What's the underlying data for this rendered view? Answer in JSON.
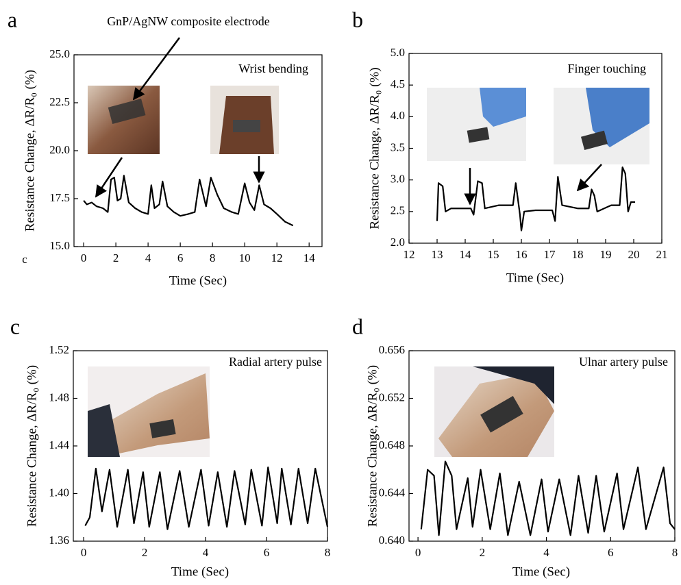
{
  "chart_data": [
    {
      "type": "line",
      "panel_label": "a",
      "annotations": [
        "Wrist bending",
        "GnP/AgNW composite electrode",
        "c"
      ],
      "xlabel": "Time (Sec)",
      "ylabel": "Resistance Change, ΔR/R₀ (%)",
      "color": "#000000",
      "x": [
        0.0,
        0.2,
        0.5,
        0.8,
        1.2,
        1.5,
        1.7,
        1.9,
        2.1,
        2.3,
        2.5,
        2.8,
        3.2,
        3.6,
        4.0,
        4.2,
        4.4,
        4.7,
        4.9,
        5.2,
        5.6,
        6.0,
        6.5,
        6.9,
        7.2,
        7.6,
        7.9,
        8.3,
        8.7,
        9.2,
        9.6,
        10.0,
        10.3,
        10.6,
        10.9,
        11.2,
        11.6,
        12.0,
        12.5,
        13.0
      ],
      "values": [
        17.4,
        17.2,
        17.3,
        17.1,
        17.0,
        16.8,
        18.5,
        18.6,
        17.4,
        17.5,
        18.7,
        17.3,
        17.0,
        16.8,
        16.7,
        18.2,
        17.0,
        17.2,
        18.4,
        17.1,
        16.8,
        16.6,
        16.7,
        16.8,
        18.5,
        17.1,
        18.6,
        17.7,
        17.0,
        16.8,
        16.7,
        18.3,
        17.3,
        16.9,
        18.2,
        17.2,
        17.0,
        16.7,
        16.3,
        16.1
      ],
      "xlim": [
        -0.6,
        14.8
      ],
      "ylim": [
        15,
        25
      ],
      "xticks": [
        0,
        2,
        4,
        6,
        8,
        10,
        12,
        14
      ],
      "yticks": [
        {
          "value": 15,
          "label": "15.0"
        },
        {
          "value": 17.5,
          "label": "17.5"
        },
        {
          "value": 20,
          "label": "20.0"
        },
        {
          "value": 22.5,
          "label": "22.5"
        },
        {
          "value": 25,
          "label": "25.0"
        }
      ]
    },
    {
      "type": "line",
      "panel_label": "b",
      "annotations": [
        "Finger touching"
      ],
      "xlabel": "Time (Sec)",
      "ylabel": "Resistance Change, ΔR/R₀ (%)",
      "color": "#000000",
      "x": [
        13.0,
        13.05,
        13.2,
        13.3,
        13.5,
        14.2,
        14.3,
        14.45,
        14.6,
        14.7,
        15.2,
        15.7,
        15.8,
        15.95,
        16.0,
        16.1,
        16.5,
        17.1,
        17.2,
        17.3,
        17.45,
        18.0,
        18.4,
        18.5,
        18.6,
        18.7,
        19.2,
        19.5,
        19.6,
        19.7,
        19.8,
        19.9,
        20.05
      ],
      "values": [
        2.35,
        2.95,
        2.9,
        2.5,
        2.55,
        2.55,
        2.45,
        2.98,
        2.95,
        2.55,
        2.6,
        2.6,
        2.95,
        2.45,
        2.2,
        2.5,
        2.52,
        2.52,
        2.35,
        3.05,
        2.6,
        2.55,
        2.55,
        2.85,
        2.75,
        2.5,
        2.6,
        2.6,
        3.2,
        3.1,
        2.5,
        2.65,
        2.65
      ],
      "xlim": [
        12,
        21
      ],
      "ylim": [
        2,
        5
      ],
      "xticks": [
        12,
        13,
        14,
        15,
        16,
        17,
        18,
        19,
        20,
        21
      ],
      "yticks": [
        {
          "value": 2,
          "label": "2.0"
        },
        {
          "value": 2.5,
          "label": "2.5"
        },
        {
          "value": 3,
          "label": "3.0"
        },
        {
          "value": 3.5,
          "label": "3.5"
        },
        {
          "value": 4,
          "label": "4.0"
        },
        {
          "value": 4.5,
          "label": "4.5"
        },
        {
          "value": 5,
          "label": "5.0"
        }
      ]
    },
    {
      "type": "line",
      "panel_label": "c",
      "annotations": [
        "Radial artery pulse"
      ],
      "xlabel": "Time (Sec)",
      "ylabel": "Resistance Change, ΔR/R₀ (%)",
      "color": "#000000",
      "x": [
        0.05,
        0.2,
        0.4,
        0.6,
        0.85,
        1.1,
        1.45,
        1.65,
        1.95,
        2.15,
        2.5,
        2.75,
        3.15,
        3.45,
        3.85,
        4.1,
        4.4,
        4.7,
        4.95,
        5.3,
        5.5,
        5.85,
        6.05,
        6.35,
        6.5,
        6.8,
        7.05,
        7.35,
        7.6,
        8.0
      ],
      "values": [
        1.373,
        1.38,
        1.421,
        1.385,
        1.42,
        1.372,
        1.42,
        1.375,
        1.418,
        1.372,
        1.418,
        1.37,
        1.419,
        1.372,
        1.42,
        1.373,
        1.418,
        1.372,
        1.419,
        1.374,
        1.42,
        1.373,
        1.422,
        1.375,
        1.421,
        1.374,
        1.421,
        1.375,
        1.421,
        1.372
      ],
      "xlim": [
        -0.34,
        8
      ],
      "ylim": [
        1.36,
        1.52
      ],
      "xticks": [
        0,
        2,
        4,
        6,
        8
      ],
      "yticks": [
        {
          "value": 1.36,
          "label": "1.36"
        },
        {
          "value": 1.4,
          "label": "1.40"
        },
        {
          "value": 1.44,
          "label": "1.44"
        },
        {
          "value": 1.48,
          "label": "1.48"
        },
        {
          "value": 1.52,
          "label": "1.52"
        }
      ]
    },
    {
      "type": "line",
      "panel_label": "d",
      "annotations": [
        "Ulnar artery pulse"
      ],
      "xlabel": "Time (Sec)",
      "ylabel": "Resistance Change, ΔR/R₀ (%)",
      "color": "#000000",
      "x": [
        0.1,
        0.3,
        0.5,
        0.65,
        0.85,
        1.05,
        1.2,
        1.55,
        1.7,
        1.95,
        2.25,
        2.55,
        2.8,
        3.15,
        3.5,
        3.85,
        4.05,
        4.4,
        4.75,
        5.0,
        5.3,
        5.55,
        5.8,
        6.2,
        6.4,
        6.85,
        7.1,
        7.65,
        7.85,
        8.0
      ],
      "values": [
        0.641,
        0.646,
        0.6455,
        0.6405,
        0.6467,
        0.6455,
        0.641,
        0.6453,
        0.6412,
        0.646,
        0.641,
        0.6457,
        0.6405,
        0.645,
        0.6405,
        0.6452,
        0.6408,
        0.6452,
        0.6405,
        0.6455,
        0.6407,
        0.6455,
        0.6408,
        0.6457,
        0.641,
        0.6462,
        0.641,
        0.6462,
        0.6415,
        0.641
      ],
      "xlim": [
        -0.28,
        8
      ],
      "ylim": [
        0.64,
        0.656
      ],
      "xticks": [
        0,
        2,
        4,
        6,
        8
      ],
      "yticks": [
        {
          "value": 0.64,
          "label": "0.640"
        },
        {
          "value": 0.644,
          "label": "0.644"
        },
        {
          "value": 0.648,
          "label": "0.648"
        },
        {
          "value": 0.652,
          "label": "0.652"
        },
        {
          "value": 0.656,
          "label": "0.656"
        }
      ]
    }
  ]
}
